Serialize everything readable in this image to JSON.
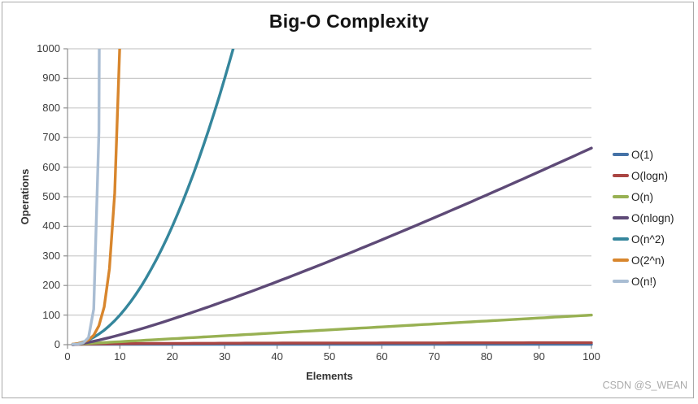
{
  "watermark": "CSDN @S_WEAN",
  "chart_data": {
    "type": "line",
    "title": "Big-O Complexity",
    "xlabel": "Elements",
    "ylabel": "Operations",
    "xlim": [
      0,
      100
    ],
    "ylim": [
      0,
      1000
    ],
    "x_ticks": [
      0,
      10,
      20,
      30,
      40,
      50,
      60,
      70,
      80,
      90,
      100
    ],
    "y_ticks": [
      0,
      100,
      200,
      300,
      400,
      500,
      600,
      700,
      800,
      900,
      1000
    ],
    "grid": "horizontal-only",
    "legend_position": "right",
    "sampling": "integer n from 1 to 100, straight segments between points, clipped at y=1000",
    "series": [
      {
        "name": "O(1)",
        "formula": "1",
        "color": "#4572A7",
        "endpoint_visible": [
          100,
          1
        ]
      },
      {
        "name": "O(logn)",
        "formula": "log2(n)",
        "color": "#AA4643",
        "endpoint_visible": [
          100,
          6.64
        ]
      },
      {
        "name": "O(n)",
        "formula": "n",
        "color": "#98B153",
        "endpoint_visible": [
          100,
          100
        ]
      },
      {
        "name": "O(nlogn)",
        "formula": "n*log2(n)",
        "color": "#5E4A77",
        "endpoint_visible": [
          100,
          664
        ]
      },
      {
        "name": "O(n^2)",
        "formula": "n^2",
        "color": "#35869C",
        "exits_top_at_x": 31.6
      },
      {
        "name": "O(2^n)",
        "formula": "2^n",
        "color": "#D8862D",
        "exits_top_at_x": 9.97
      },
      {
        "name": "O(n!)",
        "formula": "n!",
        "color": "#A9BDD3",
        "exits_top_at_x": 6.06
      }
    ]
  },
  "style_colors": {
    "gridline": "#c9c9c9",
    "axis": "#8f8f8f",
    "tick_text": "#3b3b3b",
    "frame_border": "#a9a9a9",
    "watermark_text": "#ababab"
  }
}
